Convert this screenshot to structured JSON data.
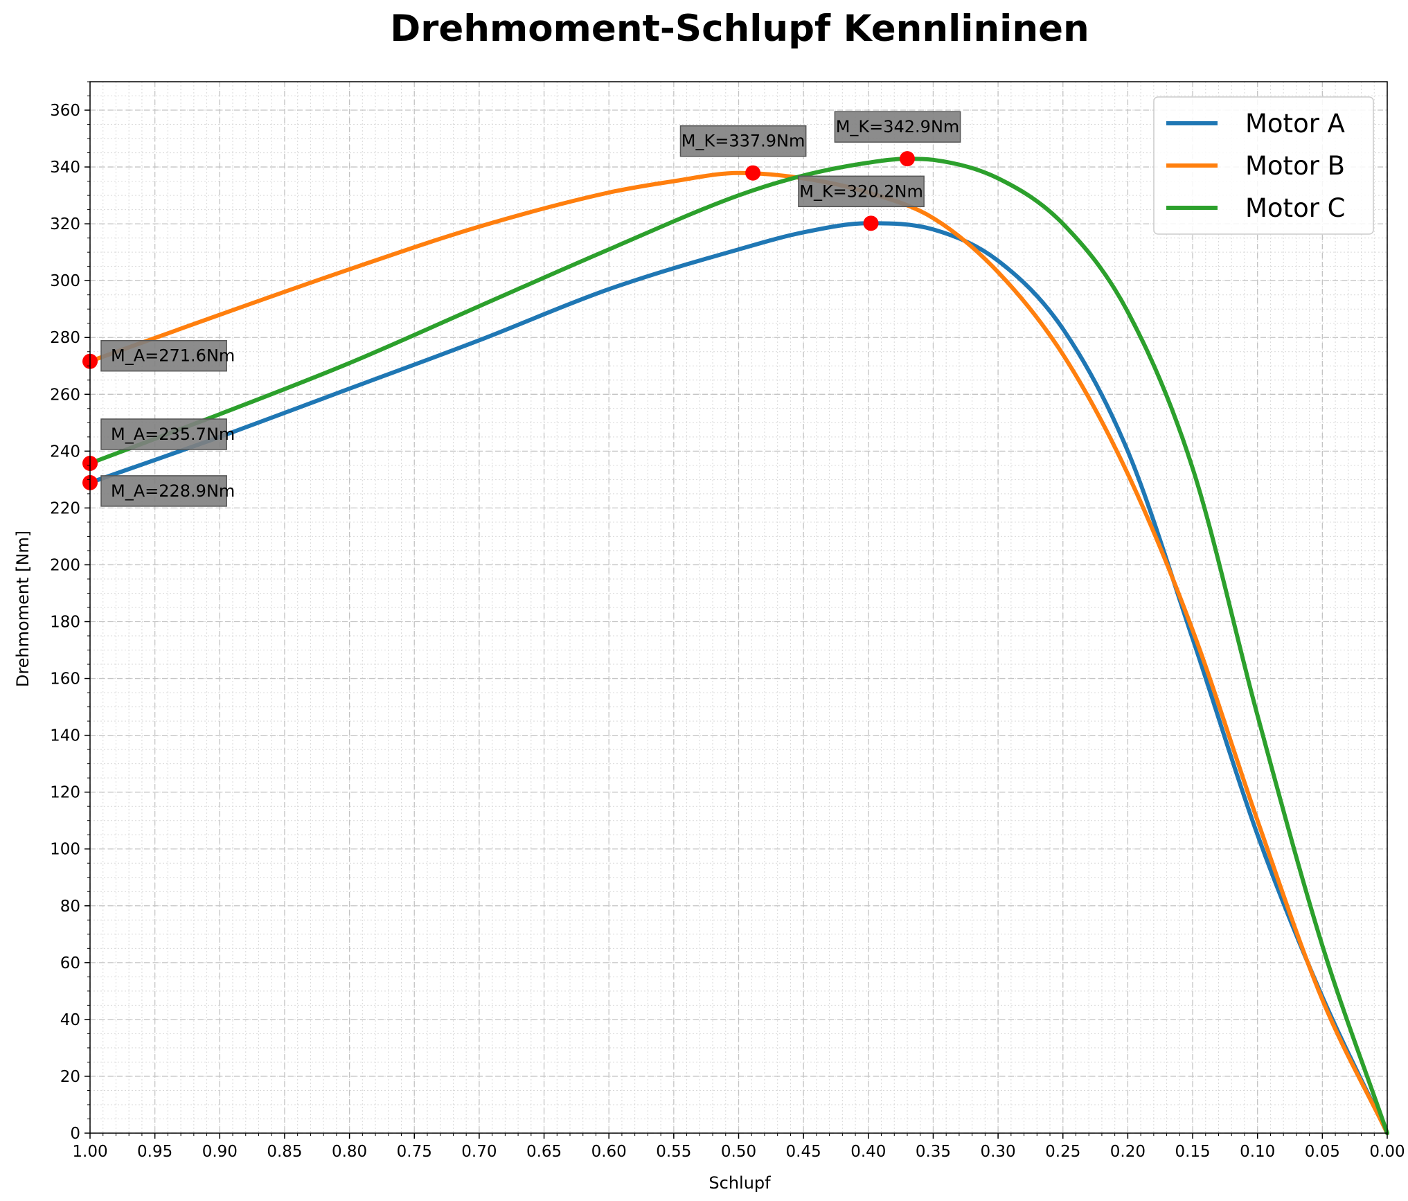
{
  "chart_data": {
    "type": "line",
    "title": "Drehmoment-Schlupf Kennlininen",
    "xlabel": "Schlupf",
    "ylabel": "Drehmoment [Nm]",
    "xlim": [
      1.0,
      0.0
    ],
    "x_inverted": true,
    "ylim": [
      0,
      370
    ],
    "x_ticks": [
      "1.00",
      "0.95",
      "0.90",
      "0.85",
      "0.80",
      "0.75",
      "0.70",
      "0.65",
      "0.60",
      "0.55",
      "0.50",
      "0.45",
      "0.40",
      "0.35",
      "0.30",
      "0.25",
      "0.20",
      "0.15",
      "0.10",
      "0.05",
      "0.00"
    ],
    "y_ticks": [
      "0",
      "20",
      "40",
      "60",
      "80",
      "100",
      "120",
      "140",
      "160",
      "180",
      "200",
      "220",
      "240",
      "260",
      "280",
      "300",
      "320",
      "340",
      "360"
    ],
    "grid": true,
    "minor_grid": true,
    "legend_position": "top-right",
    "series": [
      {
        "name": "Motor A",
        "color": "#1f77b4",
        "x": [
          1.0,
          0.9,
          0.8,
          0.7,
          0.6,
          0.5,
          0.45,
          0.4,
          0.35,
          0.3,
          0.25,
          0.2,
          0.15,
          0.1,
          0.05,
          0.0
        ],
        "y": [
          228.9,
          245,
          262,
          279,
          297,
          311,
          317,
          320.2,
          318,
          307,
          283,
          240,
          174,
          105,
          48,
          0
        ]
      },
      {
        "name": "Motor B",
        "color": "#ff7f0e",
        "x": [
          1.0,
          0.9,
          0.8,
          0.7,
          0.6,
          0.55,
          0.5,
          0.45,
          0.4,
          0.35,
          0.3,
          0.25,
          0.2,
          0.15,
          0.1,
          0.05,
          0.0
        ],
        "y": [
          271.6,
          288,
          304,
          319,
          331,
          335,
          337.9,
          336,
          331,
          322,
          303,
          274,
          232,
          177,
          110,
          47,
          0
        ]
      },
      {
        "name": "Motor C",
        "color": "#2ca02c",
        "x": [
          1.0,
          0.9,
          0.8,
          0.7,
          0.6,
          0.5,
          0.45,
          0.4,
          0.37,
          0.35,
          0.3,
          0.25,
          0.2,
          0.15,
          0.1,
          0.05,
          0.0
        ],
        "y": [
          235.7,
          253,
          271,
          291,
          311,
          330,
          337,
          341.5,
          342.9,
          342.5,
          336,
          320,
          289,
          234,
          147,
          66,
          0
        ]
      }
    ],
    "markers": [
      {
        "x": 1.0,
        "y": 228.9,
        "label": "M_A=228.9Nm",
        "placement": "below-right"
      },
      {
        "x": 1.0,
        "y": 271.6,
        "label": "M_A=271.6Nm",
        "placement": "right"
      },
      {
        "x": 1.0,
        "y": 235.7,
        "label": "M_A=235.7Nm",
        "placement": "above-right"
      },
      {
        "x": 0.398,
        "y": 320.2,
        "label": "M_K=320.2Nm",
        "placement": "above"
      },
      {
        "x": 0.489,
        "y": 337.9,
        "label": "M_K=337.9Nm",
        "placement": "above"
      },
      {
        "x": 0.37,
        "y": 342.9,
        "label": "M_K=342.9Nm",
        "placement": "above"
      }
    ],
    "marker_color": "#ff0000",
    "annotation_box_color": "#808080"
  }
}
